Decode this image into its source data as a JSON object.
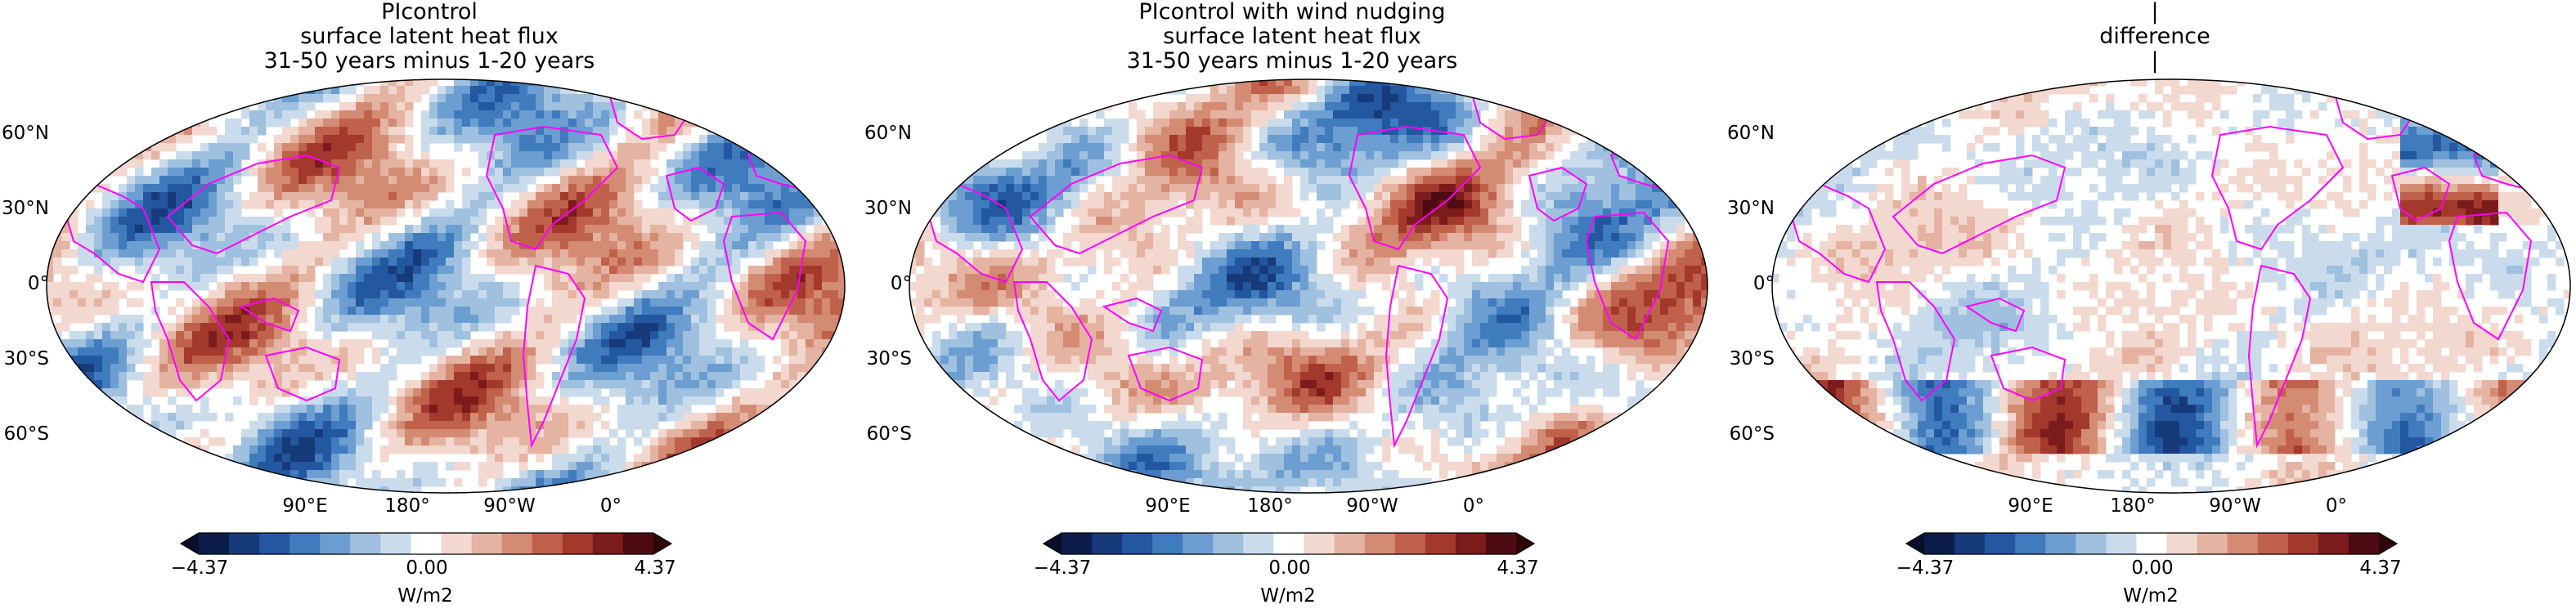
{
  "panels": [
    {
      "title_lines": [
        "PIcontrol",
        "surface latent heat flux",
        "31-50 years minus 1-20 years"
      ],
      "field": "control"
    },
    {
      "title_lines": [
        "PIcontrol with wind nudging",
        "surface latent heat flux",
        "31-50 years minus 1-20 years"
      ],
      "field": "nudged"
    },
    {
      "title_lines": [
        "|",
        "difference",
        "|"
      ],
      "field": "difference"
    }
  ],
  "lat_labels": [
    "60°N",
    "30°N",
    "0°",
    "30°S",
    "60°S"
  ],
  "lon_labels": [
    "90°E",
    "180°",
    "90°W",
    "0°"
  ],
  "colorbar": {
    "ticks": [
      "−4.37",
      "0.00",
      "4.37"
    ],
    "vmin": -4.37,
    "vmax": 4.37,
    "units": "W/m2",
    "colors": [
      "#0c1d49",
      "#173a7a",
      "#2357a0",
      "#3f7bbd",
      "#6c9ed1",
      "#9fc0df",
      "#cadcec",
      "#ffffff",
      "#f2d8cf",
      "#e5b3a2",
      "#d48b73",
      "#c0614c",
      "#a3392c",
      "#7b1b1b",
      "#4c0b12"
    ]
  },
  "coastline_color": "#ff00ff"
}
